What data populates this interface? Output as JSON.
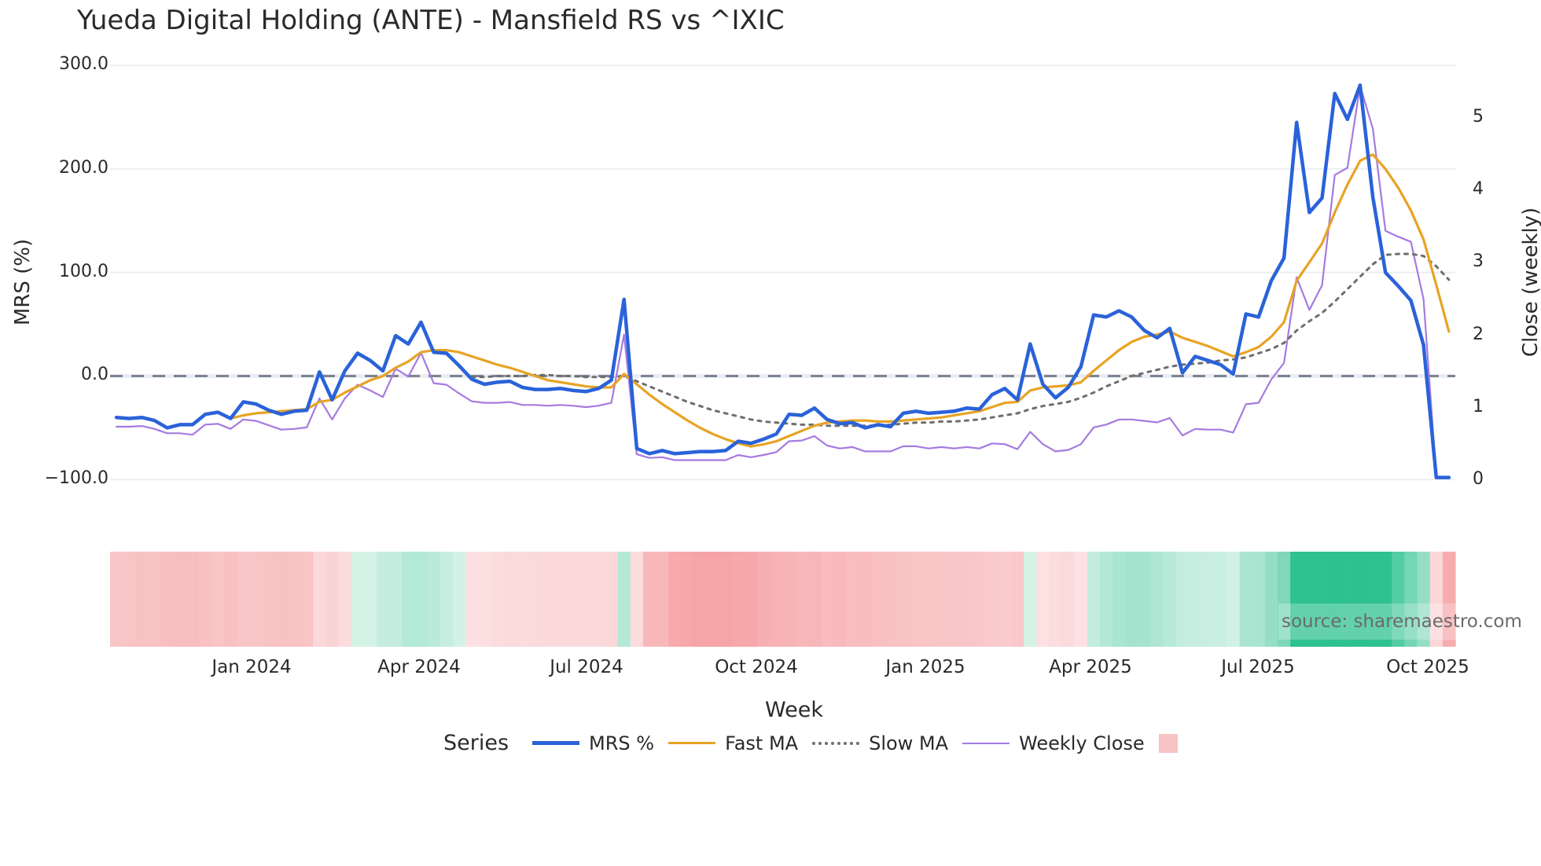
{
  "title": "Yueda Digital Holding (ANTE) - Mansfield RS vs ^IXIC",
  "axes": {
    "y_left": {
      "label": "MRS (%)",
      "ticks": [
        "300.0",
        "200.0",
        "100.0",
        "0.0",
        "−100.0"
      ]
    },
    "y_right": {
      "label": "Close (weekly)",
      "ticks": [
        "5",
        "4",
        "3",
        "2",
        "1",
        "0"
      ]
    },
    "x": {
      "label": "Week",
      "ticks": [
        "Jan 2024",
        "Apr 2024",
        "Jul 2024",
        "Oct 2024",
        "Jan 2025",
        "Apr 2025",
        "Jul 2025",
        "Oct 2025"
      ]
    }
  },
  "legend": {
    "title": "Series",
    "items": [
      {
        "label": "MRS %",
        "color": "#2a62d9",
        "style": "solid-thick"
      },
      {
        "label": "Fast MA",
        "color": "#e8a324",
        "style": "solid"
      },
      {
        "label": "Slow MA",
        "color": "#6e6e6e",
        "style": "dotted"
      },
      {
        "label": "Weekly Close",
        "color": "#a57be0",
        "style": "solid-thin"
      },
      {
        "label": "",
        "color": "#f7c3c5",
        "style": "box"
      }
    ]
  },
  "source": "source: sharemaestro.com",
  "colors": {
    "mrs": "#2a62d9",
    "fast": "#e8a324",
    "slow": "#6e6e6e",
    "close": "#a57be0",
    "zero_line": "#6b7280",
    "grid": "#eceff3"
  },
  "chart_data": {
    "type": "line",
    "title": "Yueda Digital Holding (ANTE) - Mansfield RS vs ^IXIC",
    "xlabel": "Week",
    "ylabel": "MRS (%)",
    "ylabel_right": "Close (weekly)",
    "ylim": [
      -100,
      300
    ],
    "ylim_right": [
      0,
      5.5
    ],
    "x_tick_labels": [
      "Jan 2024",
      "Apr 2024",
      "Jul 2024",
      "Oct 2024",
      "Jan 2025",
      "Apr 2025",
      "Jul 2025",
      "Oct 2025"
    ],
    "x_tick_week_index": [
      10.0,
      23.0,
      36.0,
      49.2,
      62.4,
      75.3,
      88.3,
      101.6
    ],
    "grid": true,
    "legend_position": "bottom",
    "zero_line": 0,
    "series": [
      {
        "name": "MRS %",
        "axis": "left",
        "start": 0,
        "values": [
          -40,
          -41,
          -40,
          -43,
          -50,
          -47,
          -47,
          -37,
          -35,
          -41,
          -25,
          -27,
          -33,
          -37,
          -34,
          -33,
          4,
          -23,
          5,
          22,
          15,
          5,
          39,
          31,
          52,
          23,
          22,
          10,
          -3,
          -8,
          -6,
          -5,
          -11,
          -13,
          -13,
          -12,
          -14,
          -15,
          -12,
          -4,
          74,
          -70,
          -75,
          -72,
          -75,
          -74,
          -73,
          -73,
          -72,
          -63,
          -65,
          -61,
          -56,
          -37,
          -38,
          -31,
          -42,
          -46,
          -45,
          -50,
          -47,
          -49,
          -36,
          -34,
          -36,
          -35,
          -34,
          -31,
          -32,
          -18,
          -12,
          -23,
          31,
          -8,
          -21,
          -11,
          9,
          59,
          57,
          63,
          57,
          44,
          37,
          46,
          3,
          19,
          15,
          11,
          2,
          60,
          57,
          92,
          114,
          245,
          158,
          172,
          273,
          248,
          281,
          173,
          100,
          87,
          73,
          30,
          -98,
          -98
        ]
      },
      {
        "name": "Fast MA",
        "axis": "left",
        "start": 9,
        "values": [
          -41,
          -38,
          -36,
          -35,
          -34,
          -33,
          -32,
          -25,
          -23,
          -16,
          -10,
          -4,
          0,
          8,
          14,
          23,
          25,
          25,
          23,
          19,
          15,
          11,
          8,
          4,
          0,
          -4,
          -6,
          -8,
          -10,
          -11,
          -11,
          2,
          -8,
          -18,
          -27,
          -35,
          -43,
          -50,
          -56,
          -61,
          -65,
          -68,
          -66,
          -63,
          -58,
          -53,
          -48,
          -45,
          -44,
          -43,
          -43,
          -44,
          -44,
          -43,
          -42,
          -41,
          -40,
          -38,
          -36,
          -34,
          -30,
          -26,
          -25,
          -14,
          -11,
          -10,
          -9,
          -6,
          5,
          15,
          25,
          33,
          38,
          40,
          43,
          37,
          33,
          29,
          24,
          19,
          23,
          28,
          38,
          52,
          92,
          110,
          128,
          158,
          185,
          208,
          214,
          200,
          182,
          160,
          132,
          88,
          43
        ]
      },
      {
        "name": "Slow MA",
        "axis": "left",
        "start": 28,
        "values": [
          -1,
          -1,
          0,
          0,
          0,
          1,
          1,
          0,
          0,
          -1,
          -1,
          -1,
          0,
          -5,
          -10,
          -15,
          -20,
          -25,
          -29,
          -33,
          -36,
          -39,
          -42,
          -44,
          -45,
          -46,
          -47,
          -47,
          -48,
          -48,
          -48,
          -48,
          -48,
          -47,
          -46,
          -45,
          -45,
          -44,
          -44,
          -43,
          -42,
          -40,
          -38,
          -36,
          -32,
          -29,
          -27,
          -25,
          -21,
          -16,
          -10,
          -5,
          0,
          3,
          6,
          9,
          11,
          12,
          13,
          15,
          16,
          18,
          22,
          26,
          32,
          44,
          53,
          61,
          72,
          84,
          96,
          108,
          117,
          118,
          118,
          116,
          106,
          93
        ]
      },
      {
        "name": "Weekly Close",
        "axis": "right",
        "start": 0,
        "values": [
          0.73,
          0.73,
          0.74,
          0.7,
          0.64,
          0.64,
          0.62,
          0.76,
          0.77,
          0.7,
          0.83,
          0.81,
          0.75,
          0.69,
          0.7,
          0.72,
          1.12,
          0.83,
          1.12,
          1.31,
          1.23,
          1.14,
          1.53,
          1.42,
          1.75,
          1.33,
          1.31,
          1.19,
          1.08,
          1.06,
          1.06,
          1.07,
          1.03,
          1.03,
          1.02,
          1.03,
          1.02,
          1.0,
          1.02,
          1.06,
          2.0,
          0.35,
          0.3,
          0.31,
          0.27,
          0.27,
          0.27,
          0.27,
          0.27,
          0.34,
          0.31,
          0.34,
          0.38,
          0.53,
          0.54,
          0.6,
          0.47,
          0.43,
          0.45,
          0.39,
          0.39,
          0.39,
          0.46,
          0.46,
          0.43,
          0.45,
          0.43,
          0.45,
          0.43,
          0.5,
          0.49,
          0.42,
          0.66,
          0.49,
          0.39,
          0.41,
          0.49,
          0.72,
          0.76,
          0.83,
          0.83,
          0.81,
          0.79,
          0.85,
          0.61,
          0.7,
          0.69,
          0.69,
          0.65,
          1.04,
          1.06,
          1.38,
          1.61,
          2.79,
          2.34,
          2.68,
          4.2,
          4.3,
          5.43,
          4.84,
          3.43,
          3.35,
          3.28,
          2.49,
          0.04,
          0.04
        ]
      }
    ],
    "heatmap": {
      "type": "heatmap",
      "description": "Weekly regime strip (red = weak RS, green = strong RS)",
      "cell_colors": [
        "#f8c6c8",
        "#f8c4c6",
        "#f7c2c4",
        "#f8c3c5",
        "#f7bfc1",
        "#f7bec1",
        "#f7bdc0",
        "#f8c2c4",
        "#f8c4c6",
        "#f8c0c3",
        "#f8c6c8",
        "#f8c5c7",
        "#f8c3c5",
        "#f8c2c4",
        "#f8c3c5",
        "#f8c4c6",
        "#fbd8d9",
        "#fad3d4",
        "#fbdcdd",
        "#d4f2e6",
        "#d4f2e6",
        "#c4ede0",
        "#c3ecdf",
        "#b4e8d7",
        "#b4e8d7",
        "#bcead9",
        "#c6eee0",
        "#d3f2e7",
        "#fde1e2",
        "#fcdfe0",
        "#fcdcdd",
        "#fbdadb",
        "#fbdbdc",
        "#fbdadb",
        "#fbd9da",
        "#fbd9da",
        "#fbd9da",
        "#fbd9da",
        "#fbd9da",
        "#fad7d8",
        "#b4e8d7",
        "#fcdcdd",
        "#f8b8bb",
        "#f8b8bb",
        "#f7a9ac",
        "#f7a6a9",
        "#f6a4a7",
        "#f6a4a7",
        "#f6a4a7",
        "#f6a8ab",
        "#f6a9ac",
        "#f7b0b2",
        "#f7b2b4",
        "#f7b4b7",
        "#f8b8ba",
        "#f7b6b9",
        "#f8bcbe",
        "#f7b9bb",
        "#f8bdbf",
        "#f8bcbe",
        "#f8c0c2",
        "#f8c2c4",
        "#f8c3c5",
        "#f8c4c6",
        "#f8c4c6",
        "#f8c5c7",
        "#f8c6c8",
        "#f8c6c8",
        "#f8c7c9",
        "#f9cacc",
        "#f9cbcd",
        "#f8c8ca",
        "#d4f2e6",
        "#fde1e2",
        "#fcdcdd",
        "#fbdadb",
        "#fde1e2",
        "#c2ecde",
        "#b3e8d6",
        "#a9e5d1",
        "#a4e3ce",
        "#a7e4cf",
        "#aee6d3",
        "#b6e9d8",
        "#c4ede0",
        "#c5ede0",
        "#c7eee1",
        "#c9efe2",
        "#d1f1e6",
        "#abe5d2",
        "#a8e4d0",
        "#95dec5",
        "#80d7b9",
        "#2ec291",
        "#2ec291",
        "#2ec291",
        "#2dc190",
        "#2ec291",
        "#2dc190",
        "#2ec291",
        "#2ec291",
        "#55cda3",
        "#74d6b5",
        "#95dec6",
        "#fcd7d8",
        "#f7adb0"
      ]
    }
  }
}
